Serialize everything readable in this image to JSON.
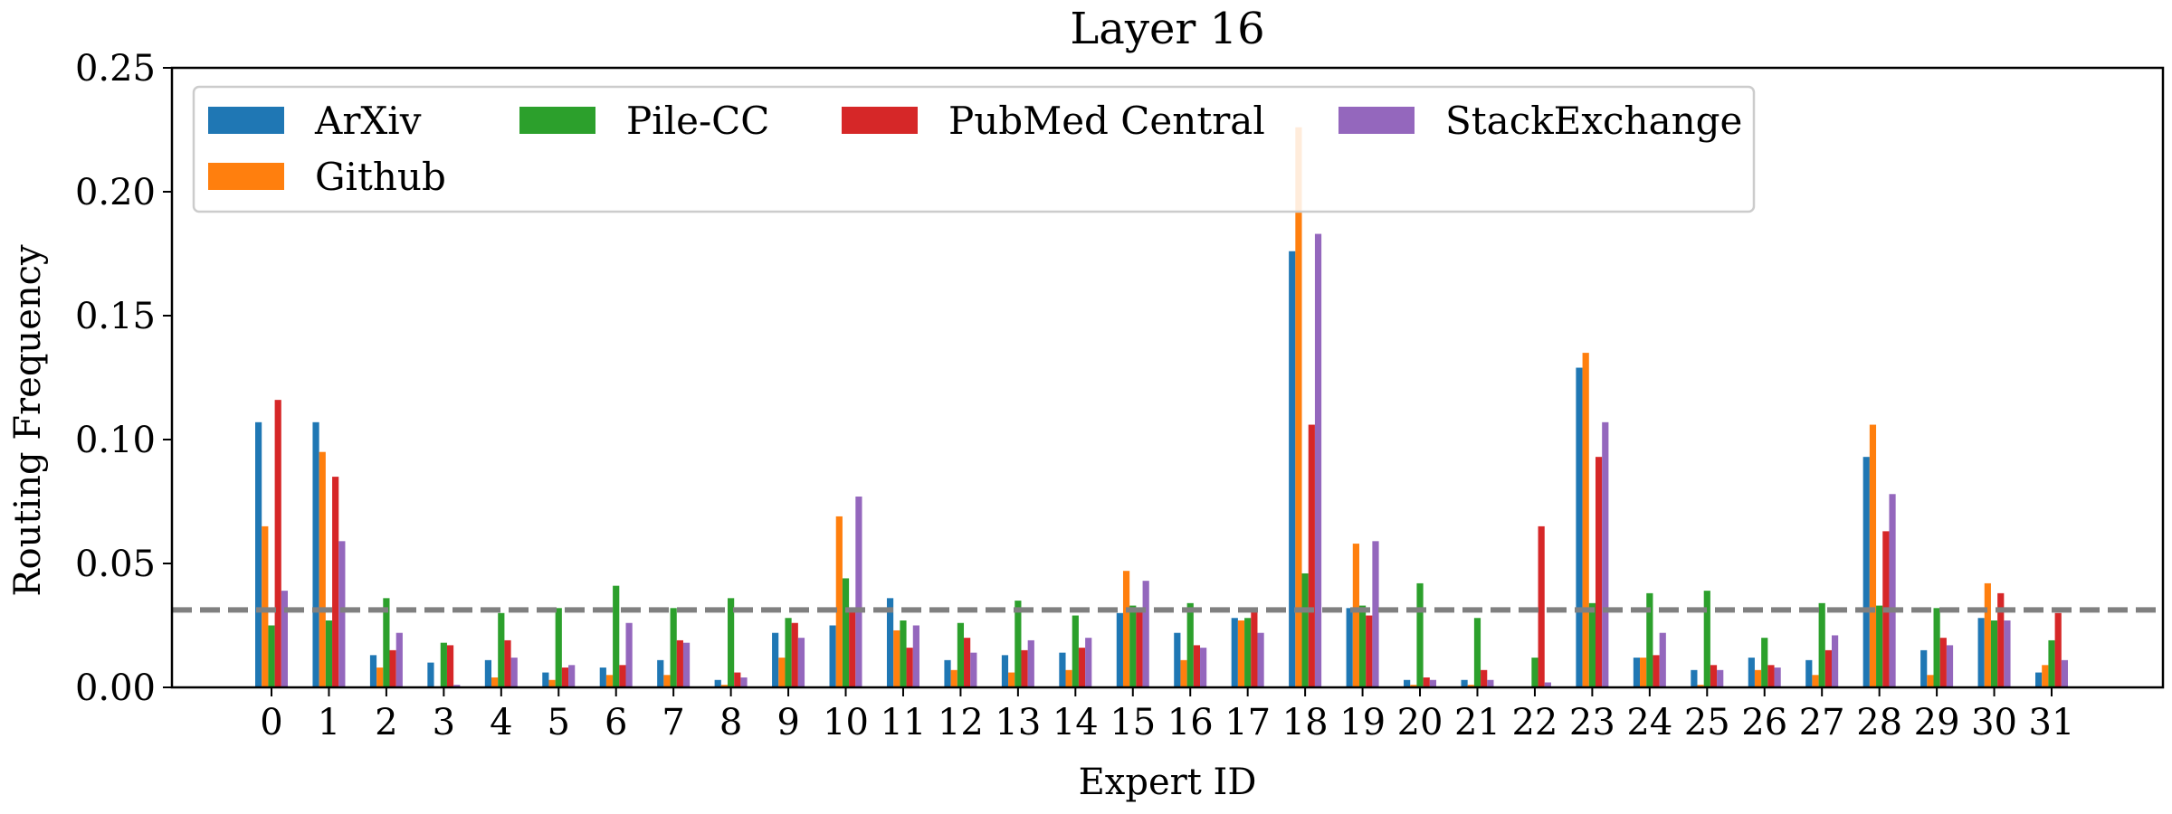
{
  "chart_data": {
    "type": "bar",
    "title": "Layer 16",
    "xlabel": "Expert ID",
    "ylabel": "Routing Frequency",
    "ylim": [
      0,
      0.25
    ],
    "yticks": [
      "0.00",
      "0.05",
      "0.10",
      "0.15",
      "0.20",
      "0.25"
    ],
    "categories": [
      "0",
      "1",
      "2",
      "3",
      "4",
      "5",
      "6",
      "7",
      "8",
      "9",
      "10",
      "11",
      "12",
      "13",
      "14",
      "15",
      "16",
      "17",
      "18",
      "19",
      "20",
      "21",
      "22",
      "23",
      "24",
      "25",
      "26",
      "27",
      "28",
      "29",
      "30",
      "31"
    ],
    "reference_line": 0.03125,
    "legend_position": "upper-left",
    "grid": false,
    "series": [
      {
        "name": "ArXiv",
        "color": "#1f77b4",
        "values": [
          0.107,
          0.107,
          0.013,
          0.01,
          0.011,
          0.006,
          0.008,
          0.011,
          0.003,
          0.022,
          0.025,
          0.036,
          0.011,
          0.013,
          0.014,
          0.03,
          0.022,
          0.028,
          0.176,
          0.032,
          0.003,
          0.003,
          0.0,
          0.129,
          0.012,
          0.007,
          0.012,
          0.011,
          0.093,
          0.015,
          0.028,
          0.006
        ]
      },
      {
        "name": "Github",
        "color": "#ff7f0e",
        "values": [
          0.065,
          0.095,
          0.008,
          0.0,
          0.004,
          0.003,
          0.005,
          0.005,
          0.001,
          0.012,
          0.069,
          0.023,
          0.007,
          0.006,
          0.007,
          0.047,
          0.011,
          0.027,
          0.226,
          0.058,
          0.001,
          0.001,
          0.0,
          0.135,
          0.012,
          0.001,
          0.007,
          0.005,
          0.106,
          0.005,
          0.042,
          0.009
        ]
      },
      {
        "name": "Pile-CC",
        "color": "#2ca02c",
        "values": [
          0.025,
          0.027,
          0.036,
          0.018,
          0.03,
          0.032,
          0.041,
          0.032,
          0.036,
          0.028,
          0.044,
          0.027,
          0.026,
          0.035,
          0.029,
          0.033,
          0.034,
          0.028,
          0.046,
          0.033,
          0.042,
          0.028,
          0.012,
          0.034,
          0.038,
          0.039,
          0.02,
          0.034,
          0.033,
          0.032,
          0.027,
          0.019
        ]
      },
      {
        "name": "PubMed Central",
        "color": "#d62728",
        "values": [
          0.116,
          0.085,
          0.015,
          0.017,
          0.019,
          0.008,
          0.009,
          0.019,
          0.006,
          0.026,
          0.031,
          0.016,
          0.02,
          0.015,
          0.016,
          0.031,
          0.017,
          0.031,
          0.106,
          0.029,
          0.004,
          0.007,
          0.065,
          0.093,
          0.013,
          0.009,
          0.009,
          0.015,
          0.063,
          0.02,
          0.038,
          0.03
        ]
      },
      {
        "name": "StackExchange",
        "color": "#9467bd",
        "values": [
          0.039,
          0.059,
          0.022,
          0.001,
          0.012,
          0.009,
          0.026,
          0.018,
          0.004,
          0.02,
          0.077,
          0.025,
          0.014,
          0.019,
          0.02,
          0.043,
          0.016,
          0.022,
          0.183,
          0.059,
          0.003,
          0.003,
          0.002,
          0.107,
          0.022,
          0.007,
          0.008,
          0.021,
          0.078,
          0.017,
          0.027,
          0.011
        ]
      }
    ]
  }
}
